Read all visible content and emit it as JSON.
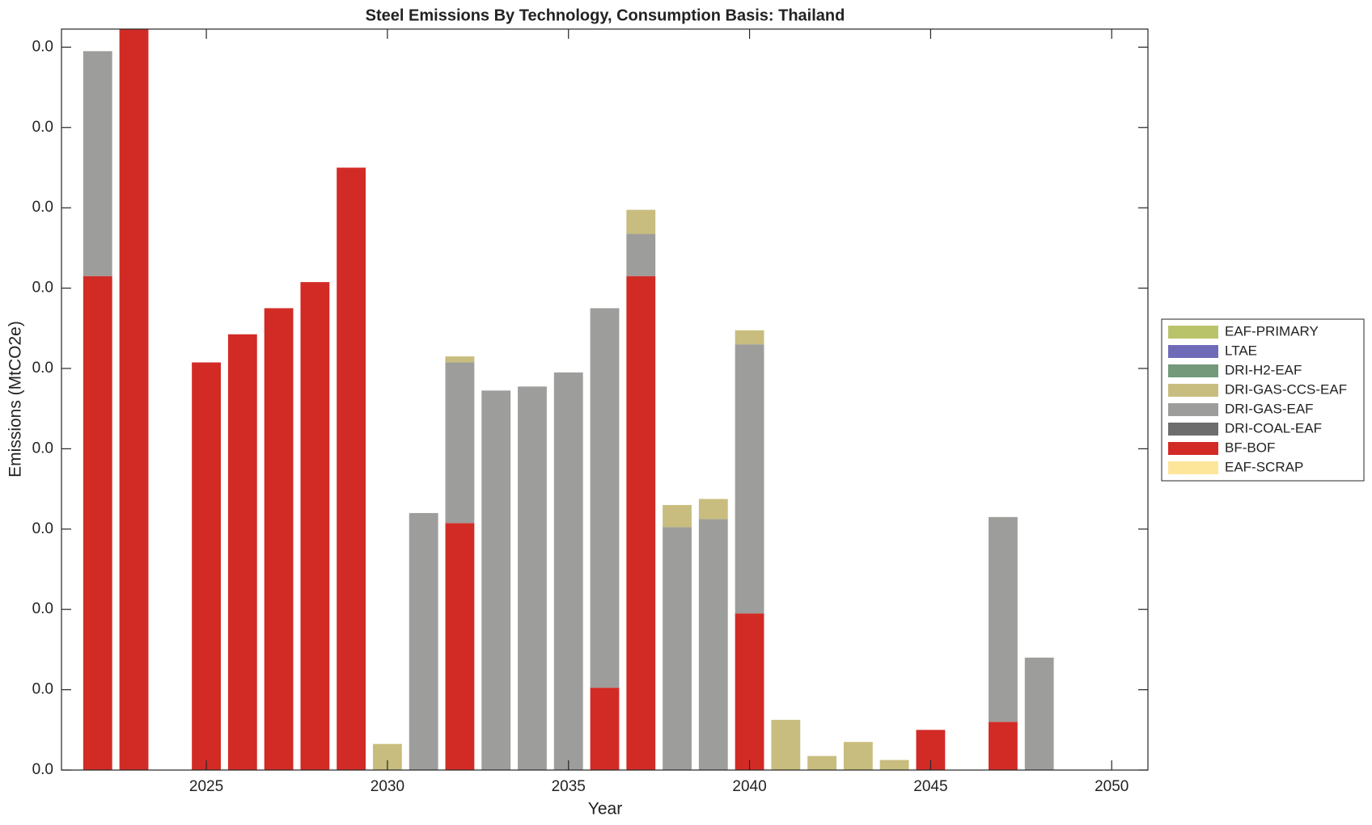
{
  "chart_data": {
    "type": "stacked-bar",
    "title": "Steel Emissions By Technology, Consumption Basis: Thailand",
    "x_label": "Year",
    "y_label": "Emissions (MtCO2e)",
    "x": [
      2022,
      2023,
      2024,
      2025,
      2026,
      2027,
      2028,
      2029,
      2030,
      2031,
      2032,
      2033,
      2034,
      2035,
      2036,
      2037,
      2038,
      2039,
      2040,
      2041,
      2042,
      2043,
      2044,
      2045,
      2046,
      2047,
      2048,
      2049,
      2050
    ],
    "xlim": [
      2021,
      2051
    ],
    "xticks": [
      2025,
      2030,
      2035,
      2040,
      2045,
      2050
    ],
    "ylim": [
      0,
      0.0369
    ],
    "yticks": [
      {
        "value": 0,
        "label": "0.0"
      },
      {
        "value": 0.004,
        "label": "0.0"
      },
      {
        "value": 0.008,
        "label": "0.0"
      },
      {
        "value": 0.012,
        "label": "0.0"
      },
      {
        "value": 0.016,
        "label": "0.0"
      },
      {
        "value": 0.02,
        "label": "0.0"
      },
      {
        "value": 0.024,
        "label": "0.0"
      },
      {
        "value": 0.028,
        "label": "0.0"
      },
      {
        "value": 0.032,
        "label": "0.0"
      },
      {
        "value": 0.036,
        "label": "0.0"
      }
    ],
    "grid": false,
    "legend": "right",
    "series": [
      {
        "name": "EAF-SCRAP",
        "color": "#fde69a",
        "values": [
          0,
          0,
          0,
          0,
          0,
          0,
          0,
          0,
          0,
          0,
          0,
          0,
          0,
          0,
          0,
          0,
          0,
          0,
          0,
          0,
          0,
          0,
          0,
          0,
          0,
          0,
          0,
          0,
          0
        ]
      },
      {
        "name": "BF-BOF",
        "color": "#d22b26",
        "values": [
          0.0246,
          0.0369,
          0,
          0.0203,
          0.0217,
          0.023,
          0.0243,
          0.03,
          0,
          0,
          0.0123,
          0,
          0,
          0,
          0.0041,
          0.0246,
          0,
          0,
          0.0078,
          0,
          0,
          0,
          0,
          0.002,
          0,
          0.0024,
          0,
          0,
          0
        ]
      },
      {
        "name": "DRI-COAL-EAF",
        "color": "#6d6d6d",
        "values": [
          0,
          0,
          0,
          0,
          0,
          0,
          0,
          0,
          0,
          0,
          0,
          0,
          0,
          0,
          0,
          0,
          0,
          0,
          0,
          0,
          0,
          0,
          0,
          0,
          0,
          0,
          0,
          0,
          0
        ]
      },
      {
        "name": "DRI-GAS-EAF",
        "color": "#9d9d9b",
        "values": [
          0.0112,
          0,
          0,
          0,
          0,
          0,
          0,
          0,
          0,
          0.0128,
          0.008,
          0.0189,
          0.0191,
          0.0198,
          0.0189,
          0.0021,
          0.0121,
          0.0125,
          0.0134,
          0,
          0,
          0,
          0,
          0,
          0,
          0.0102,
          0.0056,
          0,
          0
        ]
      },
      {
        "name": "DRI-GAS-CCS-EAF",
        "color": "#c8bd7e",
        "values": [
          0,
          0,
          0,
          0,
          0,
          0,
          0,
          0,
          0.0013,
          0,
          0.0003,
          0,
          0,
          0,
          0,
          0.0012,
          0.0011,
          0.001,
          0.0007,
          0.0025,
          0.0007,
          0.0014,
          0.0005,
          0,
          0,
          0,
          0,
          0,
          0
        ]
      },
      {
        "name": "DRI-H2-EAF",
        "color": "#73987a",
        "values": [
          0,
          0,
          0,
          0,
          0,
          0,
          0,
          0,
          0,
          0,
          0,
          0,
          0,
          0,
          0,
          0,
          0,
          0,
          0,
          0,
          0,
          0,
          0,
          0,
          0,
          0,
          0,
          0,
          0
        ]
      },
      {
        "name": "LTAE",
        "color": "#6f6bb8",
        "values": [
          0,
          0,
          0,
          0,
          0,
          0,
          0,
          0,
          0,
          0,
          0,
          0,
          0,
          0,
          0,
          0,
          0,
          0,
          0,
          0,
          0,
          0,
          0,
          0,
          0,
          0,
          0,
          0,
          0
        ]
      },
      {
        "name": "EAF-PRIMARY",
        "color": "#b9c46a",
        "values": [
          0,
          0,
          0,
          0,
          0,
          0,
          0,
          0,
          0,
          0,
          0,
          0,
          0,
          0,
          0,
          0,
          0,
          0,
          0,
          0,
          0,
          0,
          0,
          0,
          0,
          0,
          0,
          0,
          0
        ]
      }
    ]
  }
}
